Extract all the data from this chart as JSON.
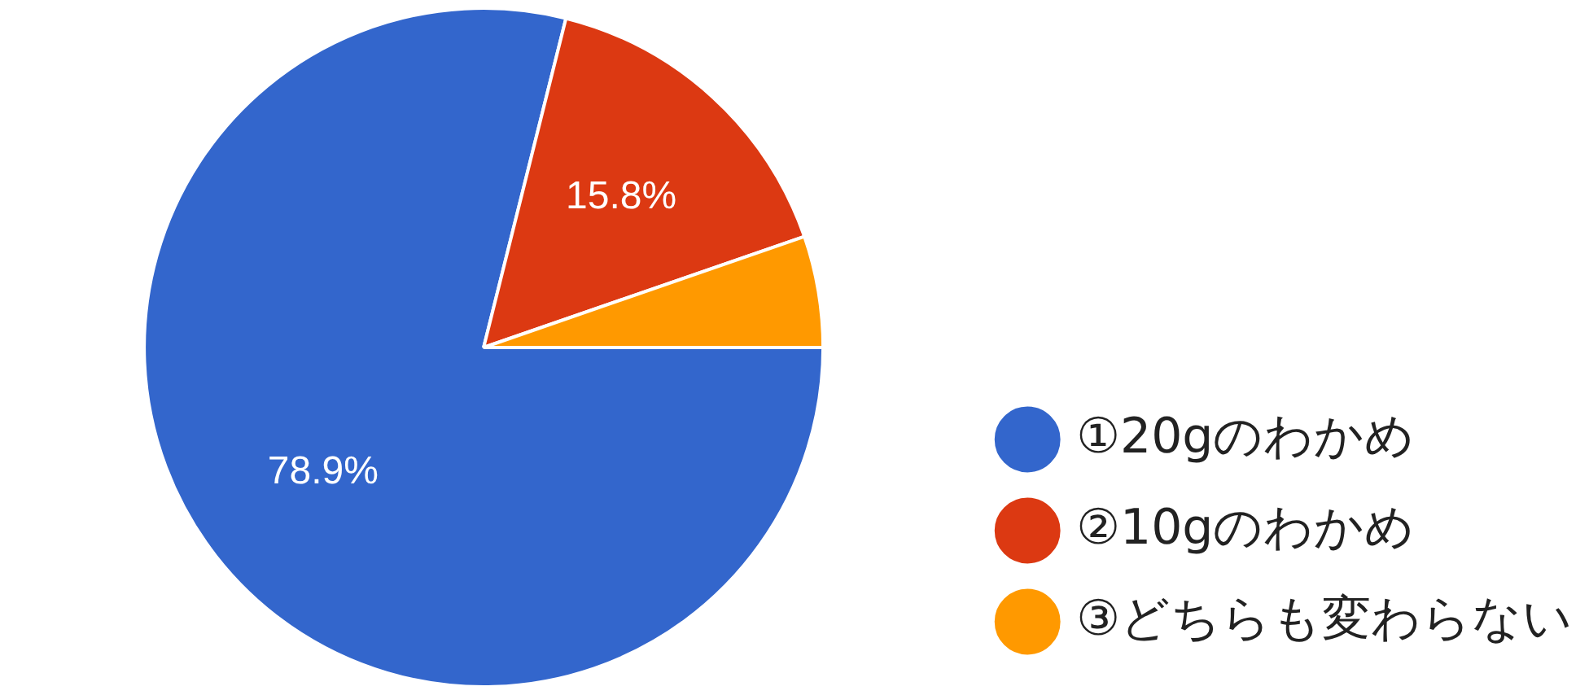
{
  "chart_data": {
    "type": "pie",
    "categories": [
      "①20gのわかめ",
      "②10gのわかめ",
      "③どちらも変わらない"
    ],
    "values": [
      78.9,
      15.8,
      5.3
    ],
    "colors": [
      "#3366cc",
      "#dc3912",
      "#ff9900"
    ],
    "value_labels": [
      "78.9%",
      "15.8%",
      null
    ],
    "legend": "right"
  }
}
